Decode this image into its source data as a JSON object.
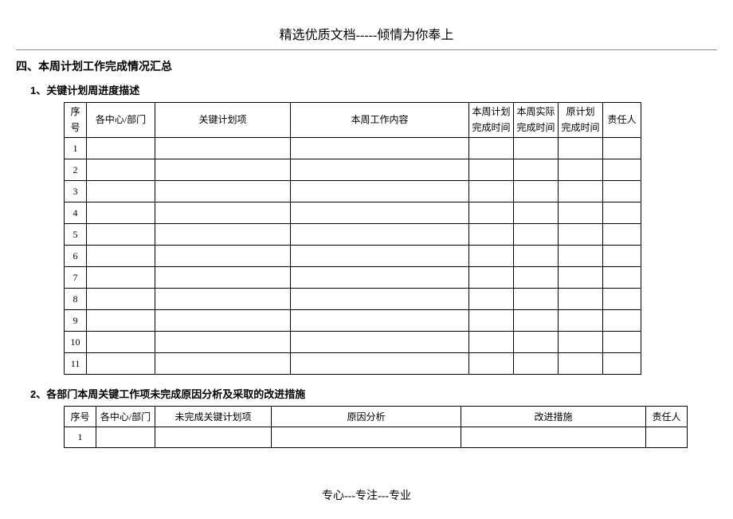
{
  "header_text": "精选优质文档-----倾情为你奉上",
  "section_title": "四、本周计划工作完成情况汇总",
  "sub1_title": "1、关键计划周进度描述",
  "sub2_title": "2、各部门本周关键工作项未完成原因分析及采取的改进措施",
  "footer_text": "专心---专注---专业",
  "table1": {
    "columns": {
      "seq_line1": "序",
      "seq_line2": "号",
      "dept": "各中心/部门",
      "plan": "关键计划项",
      "content": "本周工作内容",
      "t1_line1": "本周计划",
      "t1_line2": "完成时间",
      "t2_line1": "本周实际",
      "t2_line2": "完成时间",
      "t3_line1": "原计划",
      "t3_line2": "完成时间",
      "owner": "责任人"
    },
    "rows": [
      "1",
      "2",
      "3",
      "4",
      "5",
      "6",
      "7",
      "8",
      "9",
      "10",
      "11"
    ]
  },
  "table2": {
    "columns": {
      "seq": "序号",
      "dept": "各中心/部门",
      "unfinished": "未完成关键计划项",
      "reason": "原因分析",
      "action": "改进措施",
      "owner": "责任人"
    },
    "rows": [
      "1"
    ]
  },
  "styling": {
    "page_bg": "#ffffff",
    "text_color": "#000000",
    "border_color": "#000000",
    "hr_color": "#888888",
    "body_font": "SimSun",
    "heading_font": "SimHei",
    "header_fontsize": 16,
    "section_fontsize": 14,
    "sub_fontsize": 13,
    "table_fontsize": 12,
    "footer_fontsize": 14,
    "t1_header_row_height": 44,
    "t1_row_height": 27,
    "t2_row_height": 26,
    "table_left_margin": 60
  }
}
